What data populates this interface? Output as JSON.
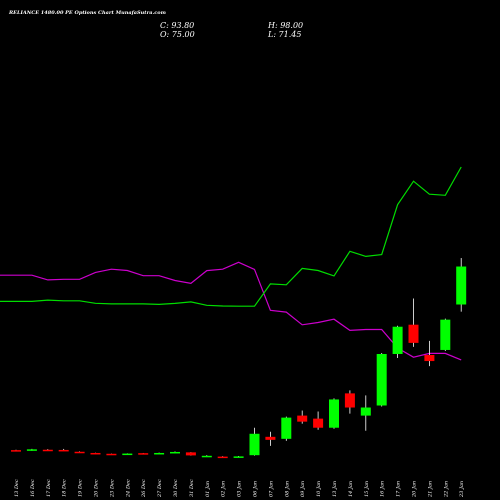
{
  "header": {
    "title": "RELIANCE 1480.00 PE Options  Chart MunafaSutra.com",
    "c": "C: 93.80",
    "h": "H: 98.00",
    "o": "O: 75.00",
    "l": "L: 71.45"
  },
  "colors": {
    "background": "#000000",
    "up": "#00ff00",
    "down": "#ff0000",
    "line_magenta": "#cc00cc",
    "line_green": "#00dd00",
    "wick": "#ffffff"
  },
  "chart_data": {
    "type": "candlestick",
    "categories": [
      "13 Dec",
      "16 Dec",
      "17 Dec",
      "18 Dec",
      "19 Dec",
      "20 Dec",
      "23 Dec",
      "24 Dec",
      "26 Dec",
      "27 Dec",
      "30 Dec",
      "31 Dec",
      "01 Jan",
      "02 Jan",
      "03 Jan",
      "06 Jan",
      "07 Jan",
      "08 Jan",
      "09 Jan",
      "10 Jan",
      "13 Jan",
      "14 Jan",
      "15 Jan",
      "16 Jan",
      "17 Jan",
      "20 Jan",
      "21 Jan",
      "22 Jan",
      "23 Jan"
    ],
    "ohlc": [
      {
        "o": 2.9,
        "h": 3.1,
        "l": 2.6,
        "c": 2.8
      },
      {
        "o": 2.7,
        "h": 3.5,
        "l": 2.6,
        "c": 3.3
      },
      {
        "o": 3.1,
        "h": 3.4,
        "l": 2.8,
        "c": 2.9
      },
      {
        "o": 3.0,
        "h": 3.5,
        "l": 2.5,
        "c": 2.8
      },
      {
        "o": 2.1,
        "h": 2.3,
        "l": 1.5,
        "c": 1.6
      },
      {
        "o": 1.5,
        "h": 1.6,
        "l": 1.1,
        "c": 1.3
      },
      {
        "o": 1.1,
        "h": 1.2,
        "l": 0.8,
        "c": 0.9
      },
      {
        "o": 1.0,
        "h": 1.3,
        "l": 0.9,
        "c": 1.2
      },
      {
        "o": 1.4,
        "h": 1.5,
        "l": 1.0,
        "c": 1.1
      },
      {
        "o": 1.3,
        "h": 1.7,
        "l": 1.1,
        "c": 1.5
      },
      {
        "o": 1.7,
        "h": 2.2,
        "l": 1.5,
        "c": 2.0
      },
      {
        "o": 1.8,
        "h": 1.9,
        "l": 0.2,
        "c": 0.3
      },
      {
        "o": 0.1,
        "h": 0.4,
        "l": 0.0,
        "c": 0.1
      },
      {
        "o": -0.3,
        "h": -0.1,
        "l": -0.5,
        "c": -0.4
      },
      {
        "o": -0.4,
        "h": 0.0,
        "l": -0.6,
        "c": -0.2
      },
      {
        "o": 0.4,
        "h": 14.0,
        "l": 0.2,
        "c": 11.0
      },
      {
        "o": 9.5,
        "h": 12.0,
        "l": 5.0,
        "c": 8.0
      },
      {
        "o": 8.5,
        "h": 19.5,
        "l": 7.5,
        "c": 19.0
      },
      {
        "o": 20.0,
        "h": 22.5,
        "l": 16.0,
        "c": 17.0
      },
      {
        "o": 18.5,
        "h": 22.0,
        "l": 13.0,
        "c": 14.0
      },
      {
        "o": 14.0,
        "h": 28.5,
        "l": 13.5,
        "c": 28.0
      },
      {
        "o": 31.0,
        "h": 32.5,
        "l": 21.0,
        "c": 24.0
      },
      {
        "o": 20.0,
        "h": 30.0,
        "l": 12.5,
        "c": 24.0
      },
      {
        "o": 25.0,
        "h": 51.0,
        "l": 24.5,
        "c": 50.5
      },
      {
        "o": 50.5,
        "h": 64.5,
        "l": 48.5,
        "c": 64.0
      },
      {
        "o": 65.0,
        "h": 78.0,
        "l": 54.0,
        "c": 56.0
      },
      {
        "o": 50.0,
        "h": 57.0,
        "l": 44.5,
        "c": 47.0
      },
      {
        "o": 52.5,
        "h": 68.0,
        "l": 52.0,
        "c": 67.5
      },
      {
        "o": 75.0,
        "h": 98.0,
        "l": 71.45,
        "c": 93.8
      }
    ],
    "lines": [
      {
        "color": "#cc00cc",
        "values": [
          139.1,
          139.1,
          135.5,
          135.9,
          135.9,
          141.2,
          143.7,
          142.7,
          138.7,
          138.7,
          135.0,
          132.8,
          142.6,
          143.7,
          149.0,
          143.5,
          112.1,
          110.7,
          100.9,
          102.7,
          105.2,
          96.6,
          97.3,
          97.3,
          83.1,
          76.0,
          78.9,
          78.9,
          73.9
        ]
      },
      {
        "color": "#00dd00",
        "values": [
          118.9,
          118.9,
          119.9,
          119.4,
          119.4,
          117.5,
          117.0,
          117.0,
          117.0,
          116.6,
          117.4,
          118.5,
          115.9,
          115.4,
          115.2,
          115.2,
          132.4,
          131.7,
          144.3,
          142.7,
          138.5,
          157.5,
          153.5,
          154.9,
          193.3,
          211.4,
          201.4,
          200.5,
          222.3
        ]
      }
    ]
  }
}
